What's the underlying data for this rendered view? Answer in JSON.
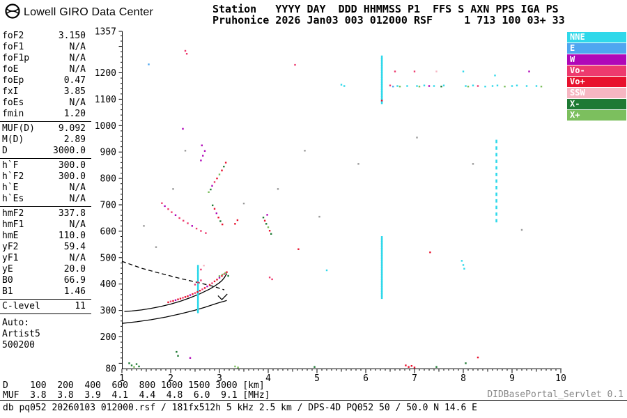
{
  "header": {
    "brand": "Lowell GIRO Data Center",
    "station_line1": "Station   YYYY DAY  DDD HHMMSS P1  FFS S AXN PPS IGA PS",
    "station_line2": "Pruhonice 2026 Jan03 003 012000 RSF     1 713 100 03+ 33"
  },
  "params": {
    "groups": [
      {
        "rows": [
          [
            "foF2",
            "3.150"
          ],
          [
            "foF1",
            "N/A"
          ],
          [
            "foF1p",
            "N/A"
          ],
          [
            "foE",
            "N/A"
          ],
          [
            "foEp",
            "0.47"
          ],
          [
            "fxI",
            "3.85"
          ],
          [
            "foEs",
            "N/A"
          ],
          [
            "fmin",
            "1.20"
          ]
        ]
      },
      {
        "rows": [
          [
            "MUF(D)",
            "9.092"
          ],
          [
            "M(D)",
            "2.89"
          ],
          [
            "D",
            "3000.0"
          ]
        ]
      },
      {
        "rows": [
          [
            "h`F",
            "300.0"
          ],
          [
            "h`F2",
            "300.0"
          ],
          [
            "h`E",
            "N/A"
          ],
          [
            "h`Es",
            "N/A"
          ]
        ]
      },
      {
        "rows": [
          [
            "hmF2",
            "337.8"
          ],
          [
            "hmF1",
            "N/A"
          ],
          [
            "hmE",
            "110.0"
          ],
          [
            "yF2",
            "59.4"
          ],
          [
            "yF1",
            "N/A"
          ],
          [
            "yE",
            "20.0"
          ],
          [
            "B0",
            "66.9"
          ],
          [
            "B1",
            "1.46"
          ]
        ]
      },
      {
        "rows": [
          [
            "C-level",
            "11"
          ]
        ]
      }
    ],
    "auto_lines": [
      "Auto:",
      "Artist5",
      "500200"
    ]
  },
  "legend": [
    {
      "label": "NNE",
      "color": "#2FD8EA"
    },
    {
      "label": "E",
      "color": "#4FA6F0"
    },
    {
      "label": "W",
      "color": "#B007B8"
    },
    {
      "label": "Vo-",
      "color": "#ED3A6E"
    },
    {
      "label": "Vo+",
      "color": "#E8112D"
    },
    {
      "label": "SSW",
      "color": "#F6B6C2"
    },
    {
      "label": "X-",
      "color": "#1E7A34"
    },
    {
      "label": "X+",
      "color": "#7CBF5E"
    }
  ],
  "chart_data": {
    "type": "scatter",
    "x_unit": "MHz",
    "y_unit": "km",
    "grid": false,
    "legend_position": "top-right",
    "x_axis": {
      "min": 1,
      "max": 10,
      "major_ticks": [
        1,
        2,
        3,
        4,
        5,
        6,
        7,
        8,
        9,
        10
      ]
    },
    "y_axis": {
      "min": 80,
      "max": 1357,
      "tick_labels": [
        1357,
        1200,
        1100,
        1000,
        900,
        800,
        700,
        600,
        500,
        400,
        300,
        200,
        80
      ]
    },
    "point_colors": {
      "NNE": "#2FD8EA",
      "E": "#4FA6F0",
      "W": "#B007B8",
      "Vo-": "#ED3A6E",
      "Vo+": "#E8112D",
      "SSW": "#F6B6C2",
      "X-": "#1E7A34",
      "X+": "#7CBF5E",
      "noise": "#9a9a9a"
    },
    "traces": [
      {
        "name": "true-height-profile",
        "style": "solid",
        "points": [
          [
            1.0,
            251
          ],
          [
            1.3,
            257
          ],
          [
            1.6,
            265
          ],
          [
            1.9,
            275
          ],
          [
            2.2,
            287
          ],
          [
            2.5,
            301
          ],
          [
            2.7,
            312
          ],
          [
            2.9,
            324
          ],
          [
            3.0,
            330
          ],
          [
            3.1,
            335
          ],
          [
            3.15,
            338
          ]
        ]
      },
      {
        "name": "hf-trace",
        "style": "solid",
        "points": [
          [
            1.05,
            296
          ],
          [
            1.2,
            298
          ],
          [
            1.4,
            302
          ],
          [
            1.6,
            308
          ],
          [
            1.8,
            315
          ],
          [
            2.0,
            324
          ],
          [
            2.2,
            335
          ],
          [
            2.4,
            348
          ],
          [
            2.6,
            363
          ],
          [
            2.8,
            381
          ],
          [
            2.9,
            392
          ],
          [
            3.0,
            405
          ],
          [
            3.05,
            413
          ],
          [
            3.1,
            424
          ],
          [
            3.15,
            440
          ]
        ]
      },
      {
        "name": "muf-transmission-curve",
        "style": "dashed",
        "points": [
          [
            1.0,
            486
          ],
          [
            1.4,
            460
          ],
          [
            1.8,
            440
          ],
          [
            2.2,
            421
          ],
          [
            2.6,
            404
          ],
          [
            2.9,
            390
          ],
          [
            3.1,
            378
          ]
        ]
      },
      {
        "name": "cusp-marker",
        "style": "solid",
        "points": [
          [
            2.97,
            356
          ],
          [
            3.05,
            341
          ],
          [
            3.16,
            362
          ]
        ]
      }
    ],
    "columns": [
      {
        "x": 2.56,
        "from": 296,
        "to": 470,
        "step": 10,
        "color": "NNE"
      },
      {
        "x": 6.33,
        "from": 350,
        "to": 582,
        "step": 9,
        "color": "NNE"
      },
      {
        "x": 6.33,
        "from": 1088,
        "to": 1262,
        "step": 9,
        "color": "NNE"
      },
      {
        "x": 8.68,
        "from": 640,
        "to": 940,
        "step": 25,
        "color": "NNE"
      }
    ],
    "echoes": [
      [
        1.95,
        331,
        "Vo+"
      ],
      [
        2.0,
        334,
        "Vo-"
      ],
      [
        2.05,
        336,
        "Vo+"
      ],
      [
        2.1,
        339,
        "W"
      ],
      [
        2.15,
        342,
        "Vo+"
      ],
      [
        2.2,
        345,
        "Vo+"
      ],
      [
        2.25,
        348,
        "Vo-"
      ],
      [
        2.3,
        351,
        "Vo+"
      ],
      [
        2.35,
        354,
        "Vo+"
      ],
      [
        2.4,
        358,
        "W"
      ],
      [
        2.45,
        362,
        "Vo+"
      ],
      [
        2.5,
        366,
        "Vo-"
      ],
      [
        2.55,
        370,
        "Vo+"
      ],
      [
        2.6,
        375,
        "Vo+"
      ],
      [
        2.65,
        380,
        "Vo-"
      ],
      [
        2.7,
        385,
        "Vo+"
      ],
      [
        2.75,
        391,
        "W"
      ],
      [
        2.8,
        397,
        "Vo+"
      ],
      [
        2.85,
        403,
        "Vo-"
      ],
      [
        2.9,
        410,
        "Vo+"
      ],
      [
        2.95,
        417,
        "Vo+"
      ],
      [
        3.0,
        424,
        "W"
      ],
      [
        3.05,
        431,
        "Vo+"
      ],
      [
        3.1,
        438,
        "Vo-"
      ],
      [
        3.15,
        445,
        "Vo+"
      ],
      [
        2.5,
        398,
        "Vo-"
      ],
      [
        2.56,
        406,
        "Vo-"
      ],
      [
        2.62,
        414,
        "Vo-"
      ],
      [
        3.0,
        430,
        "X+"
      ],
      [
        3.06,
        436,
        "X+"
      ],
      [
        3.12,
        442,
        "X+"
      ],
      [
        3.18,
        431,
        "X-"
      ],
      [
        1.82,
        706,
        "Vo-"
      ],
      [
        1.88,
        695,
        "W"
      ],
      [
        1.95,
        684,
        "Vo-"
      ],
      [
        2.02,
        672,
        "Vo-"
      ],
      [
        2.1,
        661,
        "W"
      ],
      [
        2.18,
        650,
        "Vo-"
      ],
      [
        2.26,
        640,
        "Vo-"
      ],
      [
        2.35,
        630,
        "Vo-"
      ],
      [
        2.44,
        620,
        "W"
      ],
      [
        2.53,
        610,
        "Vo-"
      ],
      [
        2.62,
        601,
        "Vo-"
      ],
      [
        2.72,
        593,
        "Vo-"
      ],
      [
        2.86,
        698,
        "X-"
      ],
      [
        2.9,
        685,
        "Vo+"
      ],
      [
        2.94,
        668,
        "W"
      ],
      [
        2.98,
        652,
        "Vo+"
      ],
      [
        3.02,
        638,
        "X-"
      ],
      [
        3.06,
        626,
        "Vo+"
      ],
      [
        3.32,
        628,
        "Vo+"
      ],
      [
        3.37,
        642,
        "Vo+"
      ],
      [
        2.78,
        748,
        "X+"
      ],
      [
        2.82,
        758,
        "X-"
      ],
      [
        2.85,
        772,
        "W"
      ],
      [
        2.9,
        786,
        "Vo-"
      ],
      [
        2.95,
        800,
        "Vo+"
      ],
      [
        3.0,
        815,
        "X+"
      ],
      [
        3.05,
        830,
        "Vo+"
      ],
      [
        3.09,
        845,
        "X-"
      ],
      [
        3.13,
        860,
        "Vo+"
      ],
      [
        2.62,
        868,
        "W"
      ],
      [
        2.66,
        886,
        "W"
      ],
      [
        2.7,
        904,
        "W"
      ],
      [
        2.64,
        925,
        "W"
      ],
      [
        3.9,
        652,
        "X-"
      ],
      [
        3.93,
        640,
        "Vo+"
      ],
      [
        3.96,
        628,
        "X-"
      ],
      [
        4.0,
        615,
        "X+"
      ],
      [
        4.03,
        602,
        "Vo+"
      ],
      [
        4.06,
        590,
        "X-"
      ],
      [
        3.98,
        662,
        "W"
      ],
      [
        4.03,
        425,
        "Vo-"
      ],
      [
        4.08,
        418,
        "Vo-"
      ],
      [
        4.62,
        532,
        "Vo+"
      ],
      [
        7.32,
        520,
        "Vo+"
      ],
      [
        7.97,
        488,
        "NNE"
      ],
      [
        8.0,
        472,
        "NNE"
      ],
      [
        8.02,
        458,
        "NNE"
      ],
      [
        6.33,
        1095,
        "Vo+"
      ],
      [
        4.55,
        1230,
        "Vo-"
      ],
      [
        2.3,
        1283,
        "Vo-"
      ],
      [
        2.33,
        1272,
        "Vo-"
      ],
      [
        1.55,
        1232,
        "E"
      ],
      [
        5.2,
        452,
        "NNE"
      ],
      [
        5.5,
        1155,
        "NNE"
      ],
      [
        5.56,
        1150,
        "NNE"
      ],
      [
        6.5,
        1152,
        "Vo-"
      ],
      [
        6.56,
        1148,
        "E"
      ],
      [
        6.6,
        1205,
        "Vo-"
      ],
      [
        6.65,
        1150,
        "NNE"
      ],
      [
        6.7,
        1148,
        "X+"
      ],
      [
        6.85,
        1150,
        "NNE"
      ],
      [
        7.0,
        1205,
        "Vo-"
      ],
      [
        7.05,
        1150,
        "NNE"
      ],
      [
        7.1,
        1148,
        "X+"
      ],
      [
        7.2,
        1152,
        "NNE"
      ],
      [
        7.3,
        1150,
        "W"
      ],
      [
        7.4,
        1150,
        "NNE"
      ],
      [
        7.45,
        1205,
        "SSW"
      ],
      [
        7.55,
        1148,
        "X-"
      ],
      [
        7.6,
        1152,
        "NNE"
      ],
      [
        8.0,
        1205,
        "NNE"
      ],
      [
        8.05,
        1150,
        "NNE"
      ],
      [
        8.1,
        1148,
        "X+"
      ],
      [
        8.2,
        1152,
        "NNE"
      ],
      [
        8.3,
        1150,
        "Vo-"
      ],
      [
        8.45,
        1148,
        "NNE"
      ],
      [
        8.6,
        1150,
        "NNE"
      ],
      [
        8.65,
        1190,
        "NNE"
      ],
      [
        8.7,
        1152,
        "NNE"
      ],
      [
        8.85,
        1148,
        "X+"
      ],
      [
        9.0,
        1150,
        "NNE"
      ],
      [
        9.1,
        1152,
        "NNE"
      ],
      [
        9.3,
        1150,
        "NNE"
      ],
      [
        9.35,
        1205,
        "W"
      ],
      [
        9.5,
        1150,
        "NNE"
      ],
      [
        9.6,
        1148,
        "X+"
      ],
      [
        1.15,
        100,
        "X-"
      ],
      [
        1.2,
        92,
        "X-"
      ],
      [
        1.25,
        86,
        "X+"
      ],
      [
        1.3,
        97,
        "X-"
      ],
      [
        1.35,
        88,
        "X-"
      ],
      [
        2.12,
        143,
        "X-"
      ],
      [
        2.15,
        128,
        "X-"
      ],
      [
        2.4,
        120,
        "W"
      ],
      [
        3.32,
        88,
        "X+"
      ],
      [
        3.38,
        84,
        "X+"
      ],
      [
        4.95,
        86,
        "X-"
      ],
      [
        6.82,
        92,
        "Vo+"
      ],
      [
        6.88,
        86,
        "Vo+"
      ],
      [
        6.94,
        90,
        "Vo+"
      ],
      [
        7.0,
        84,
        "Vo+"
      ],
      [
        7.45,
        86,
        "X-"
      ],
      [
        8.05,
        100,
        "X-"
      ],
      [
        8.3,
        122,
        "Vo+"
      ],
      [
        2.25,
        988,
        "W"
      ],
      [
        2.68,
        470,
        "SSW"
      ],
      [
        2.62,
        455,
        "Vo-"
      ],
      [
        1.45,
        620,
        "noise"
      ],
      [
        1.7,
        540,
        "noise"
      ],
      [
        2.05,
        760,
        "noise"
      ],
      [
        2.3,
        905,
        "noise"
      ],
      [
        3.5,
        705,
        "noise"
      ],
      [
        4.2,
        760,
        "noise"
      ],
      [
        4.75,
        905,
        "noise"
      ],
      [
        5.05,
        655,
        "noise"
      ],
      [
        5.85,
        855,
        "noise"
      ],
      [
        7.05,
        955,
        "noise"
      ],
      [
        8.2,
        855,
        "noise"
      ],
      [
        9.2,
        605,
        "noise"
      ]
    ]
  },
  "footer": {
    "d_line": "D    100  200  400  600  800 1000 1500 3000 [km]",
    "muf_line": "MUF  3.8  3.8  3.9  4.1  4.4  4.8  6.0  9.1 [MHz]",
    "db_line": "db pq052 20260103 012000.rsf / 181fx512h 5 kHz 2.5 km / DPS-4D PQ052 50 / 50.0 N 14.6 E",
    "servlet": "DIDBasePortal_Servlet 0.1"
  }
}
